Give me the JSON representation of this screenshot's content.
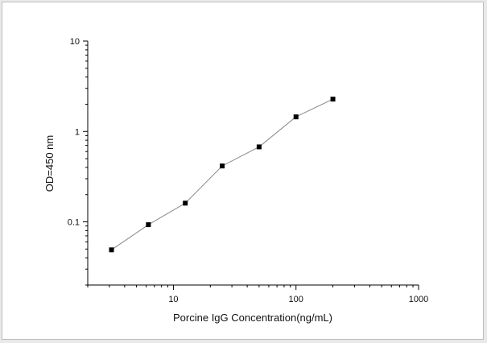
{
  "chart_data": {
    "type": "line",
    "xlabel": "Porcine IgG Concentration(ng/mL)",
    "ylabel": "OD=450 nm",
    "x_scale": "log",
    "y_scale": "log",
    "xlim": [
      2,
      1000
    ],
    "ylim": [
      0.02,
      10
    ],
    "x_ticks": [
      10,
      100,
      1000
    ],
    "x_tick_labels": [
      "10",
      "100",
      "1000"
    ],
    "y_ticks": [
      0.1,
      1,
      10
    ],
    "y_tick_labels": [
      "0.1",
      "1",
      "10"
    ],
    "grid": false,
    "legend": "none",
    "series": [
      {
        "x": [
          3.125,
          6.25,
          12.5,
          25,
          50,
          100,
          200
        ],
        "y": [
          0.049,
          0.093,
          0.161,
          0.415,
          0.675,
          1.45,
          2.28
        ],
        "line_color": "#888888",
        "marker_color": "#000000"
      }
    ]
  }
}
